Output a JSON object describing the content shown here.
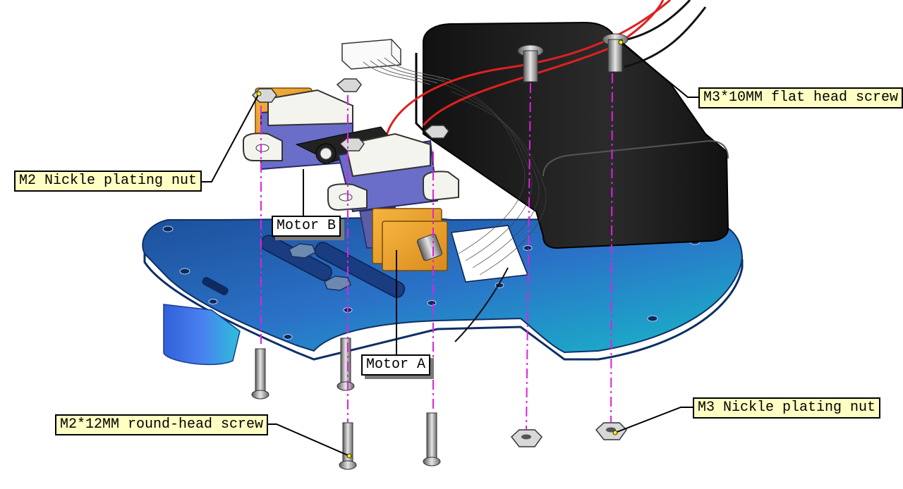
{
  "labels": {
    "m3_flat_screw": "M3*10MM flat head screw",
    "m2_nut": "M2 Nickle plating nut",
    "motor_b": "Motor B",
    "motor_a": "Motor A",
    "m3_nut": "M3 Nickle plating nut",
    "m2_round_screw": "M2*12MM round-head screw"
  },
  "colors": {
    "chassis": "#2a73c8",
    "battery_box": "#1c1c1c",
    "motor_frame": "#6a6ec8",
    "gear_plate": "#f0a030",
    "assembly_line": "#e020e0",
    "callout_fill": "#ffffc4",
    "wire_red": "#e02020"
  }
}
